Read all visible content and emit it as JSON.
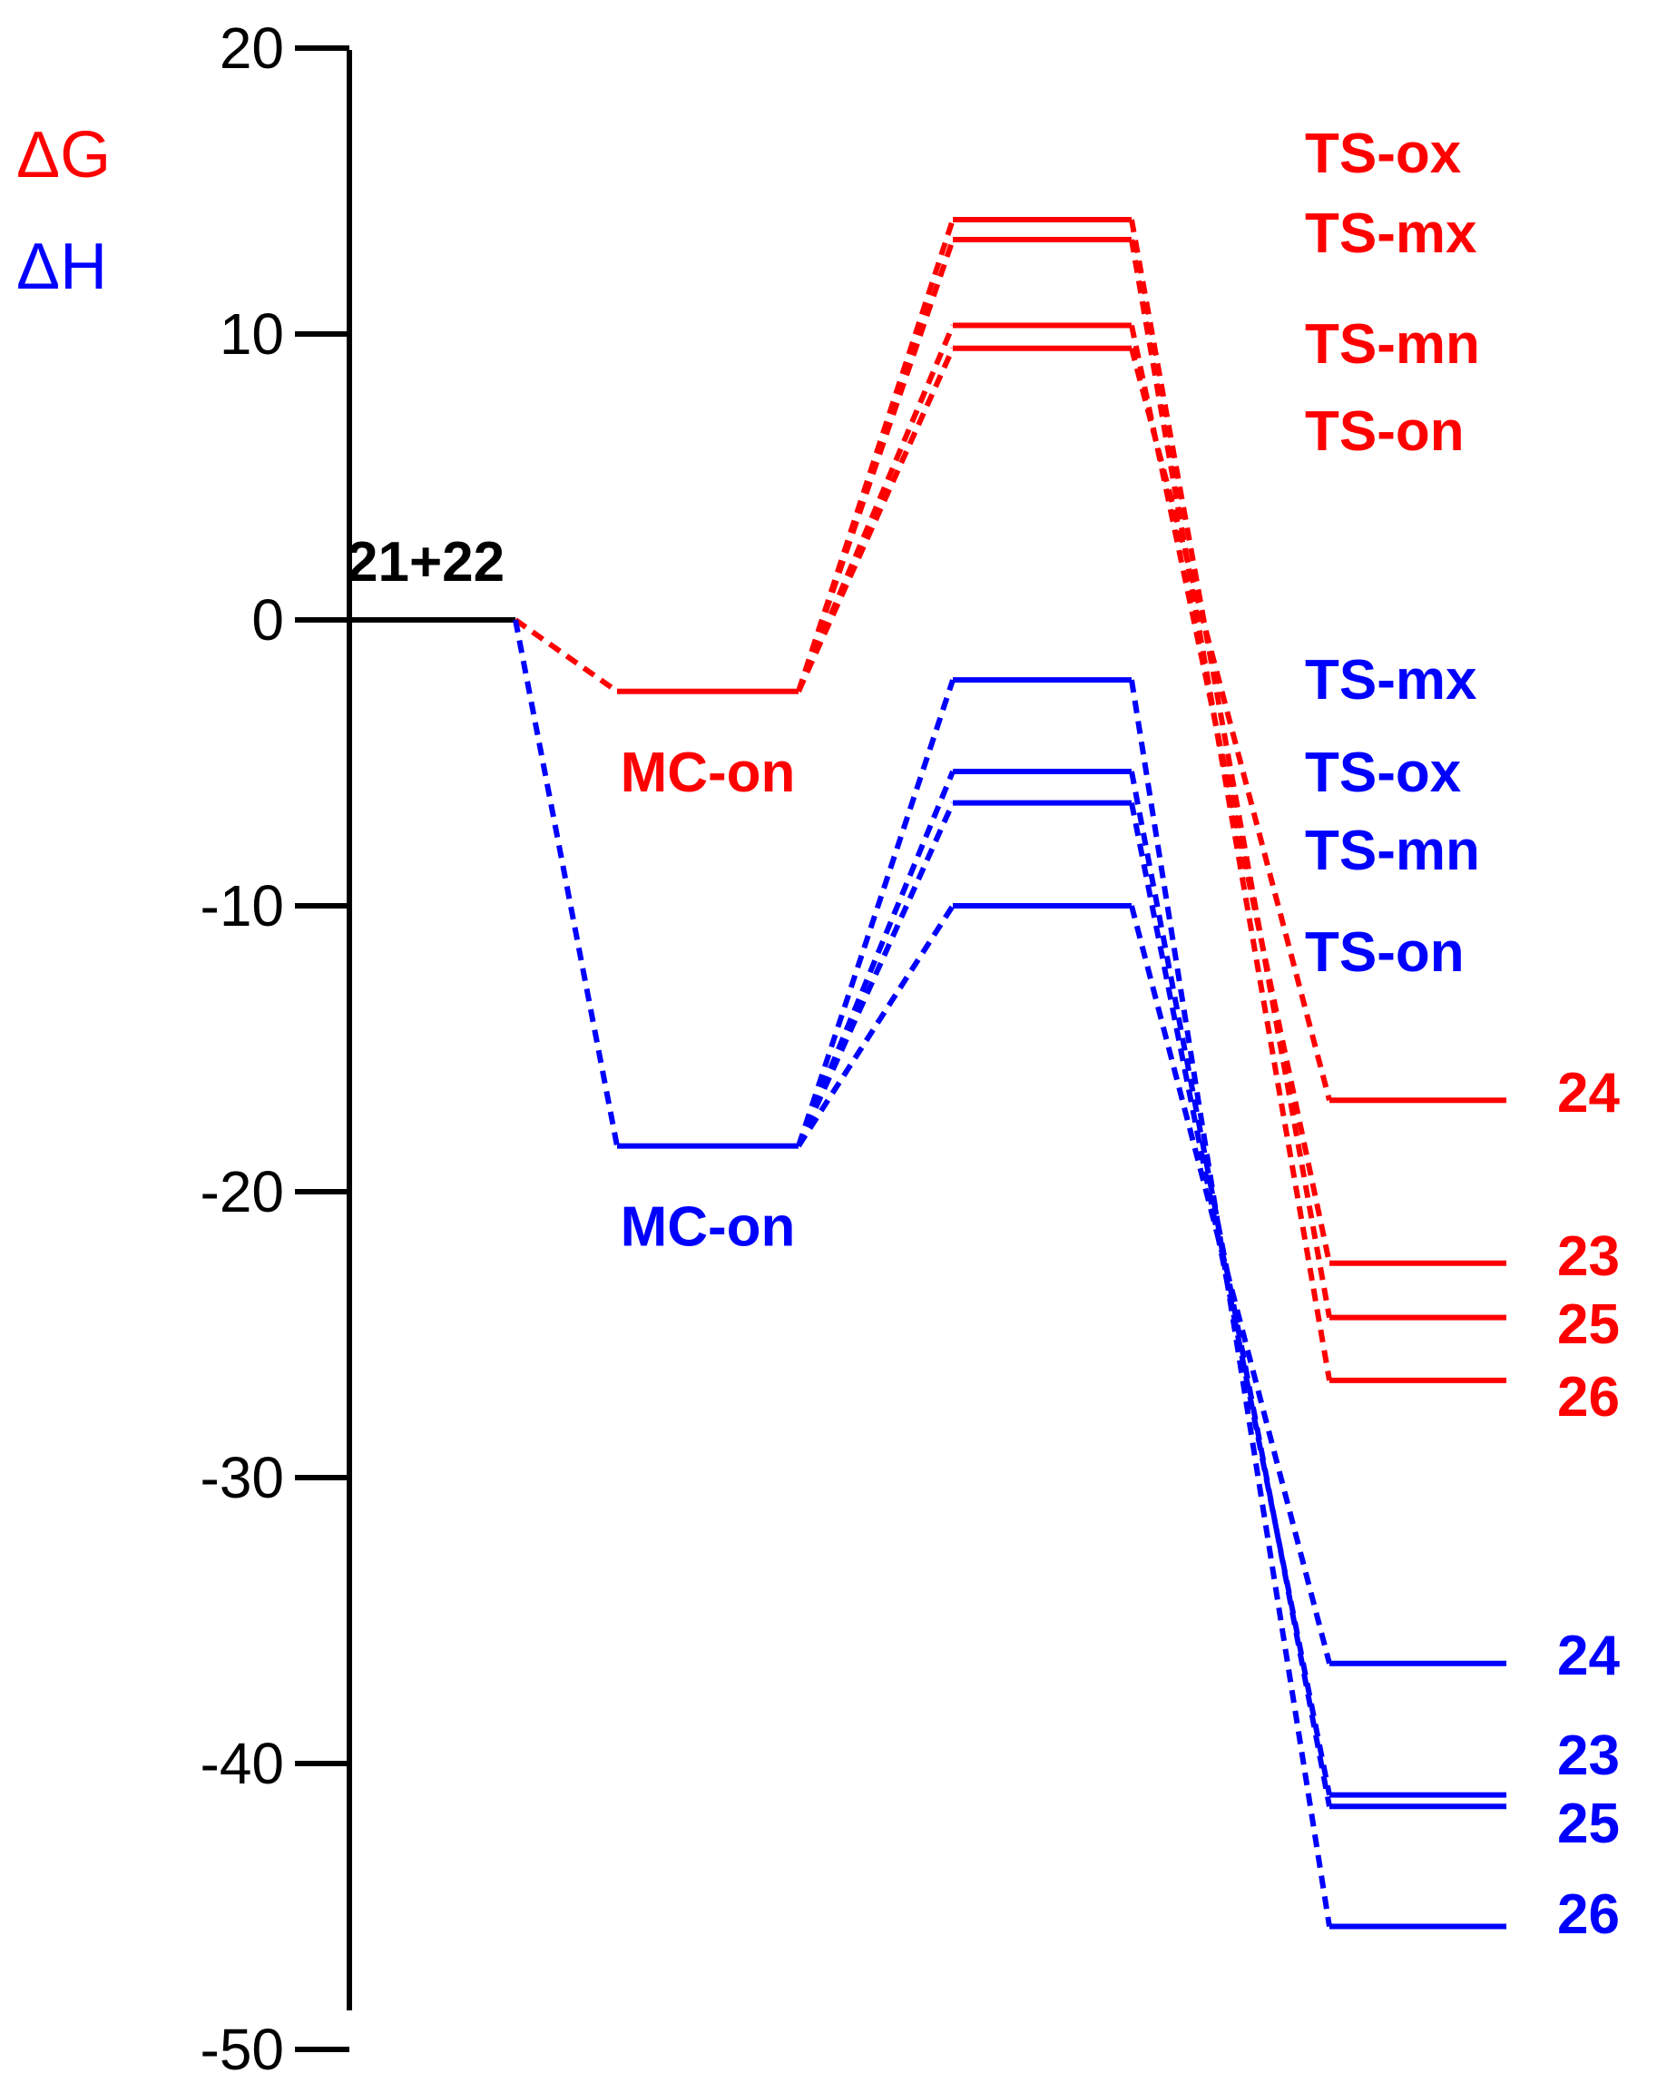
{
  "chart_data": {
    "type": "line",
    "ylim": [
      -50,
      20
    ],
    "yticks": [
      20,
      10,
      0,
      -10,
      -20,
      -30,
      -40,
      -50
    ],
    "legend": [
      {
        "label": "ΔG",
        "color": "#ff0000"
      },
      {
        "label": "ΔH",
        "color": "#0000ff"
      }
    ],
    "reference": {
      "label": "21+22",
      "value": 0
    },
    "series": [
      {
        "name": "ΔG",
        "color": "#ff0000",
        "complex": {
          "label": "MC-on",
          "value": -2.5
        },
        "transition_states": [
          {
            "label": "TS-ox",
            "value": 14.0
          },
          {
            "label": "TS-mx",
            "value": 13.3
          },
          {
            "label": "TS-mn",
            "value": 10.3
          },
          {
            "label": "TS-on",
            "value": 9.5
          }
        ],
        "products": [
          {
            "label": "24",
            "value": -16.8,
            "ts": "TS-on"
          },
          {
            "label": "23",
            "value": -22.5,
            "ts": "TS-mn"
          },
          {
            "label": "25",
            "value": -24.4,
            "ts": "TS-ox"
          },
          {
            "label": "26",
            "value": -26.6,
            "ts": "TS-mx"
          }
        ]
      },
      {
        "name": "ΔH",
        "color": "#0000ff",
        "complex": {
          "label": "MC-on",
          "value": -18.4
        },
        "transition_states": [
          {
            "label": "TS-mx",
            "value": -2.1
          },
          {
            "label": "TS-ox",
            "value": -5.3
          },
          {
            "label": "TS-mn",
            "value": -6.4
          },
          {
            "label": "TS-on",
            "value": -10.0
          }
        ],
        "products": [
          {
            "label": "24",
            "value": -36.5,
            "ts": "TS-on"
          },
          {
            "label": "23",
            "value": -41.1,
            "ts": "TS-mn"
          },
          {
            "label": "25",
            "value": -41.5,
            "ts": "TS-ox"
          },
          {
            "label": "26",
            "value": -45.7,
            "ts": "TS-mx"
          }
        ]
      }
    ]
  }
}
